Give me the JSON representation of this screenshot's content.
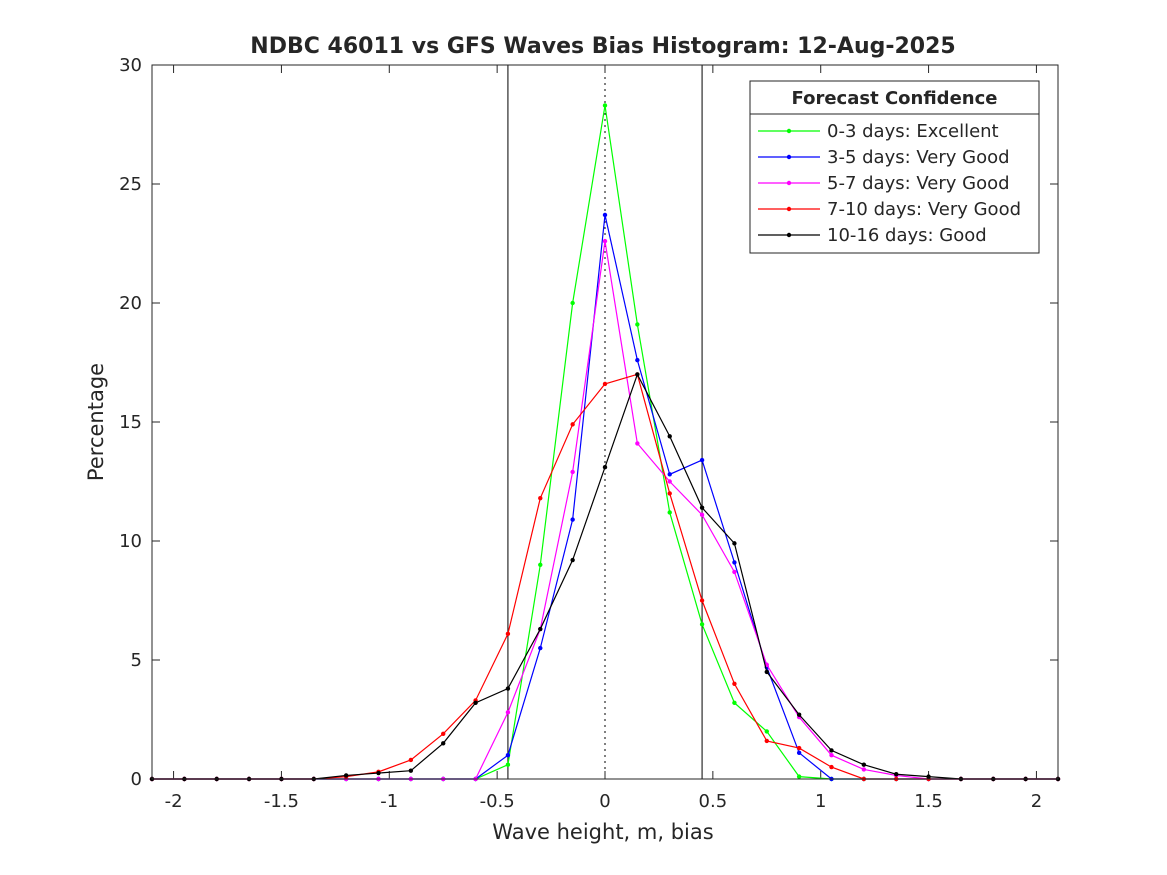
{
  "chart_data": {
    "type": "line",
    "title": "NDBC 46011 vs GFS Waves Bias Histogram: 12-Aug-2025",
    "xlabel": "Wave height, m, bias",
    "ylabel": "Percentage",
    "xlim": [
      -2.1,
      2.1
    ],
    "ylim": [
      0,
      30
    ],
    "xticks": [
      -2,
      -1.5,
      -1,
      -0.5,
      0,
      0.5,
      1,
      1.5,
      2
    ],
    "xtick_labels": [
      "-2",
      "-1.5",
      "-1",
      "-0.5",
      "0",
      "0.5",
      "1",
      "1.5",
      "2"
    ],
    "yticks": [
      0,
      5,
      10,
      15,
      20,
      25,
      30
    ],
    "ytick_labels": [
      "0",
      "5",
      "10",
      "15",
      "20",
      "25",
      "30"
    ],
    "grid": false,
    "reference_lines": {
      "solid": [
        -0.45,
        0.45
      ],
      "dotted": [
        0
      ]
    },
    "legend": {
      "title": "Forecast Confidence",
      "placement": "top-right"
    },
    "x": [
      -2.1,
      -1.95,
      -1.8,
      -1.65,
      -1.5,
      -1.35,
      -1.2,
      -1.05,
      -0.9,
      -0.75,
      -0.6,
      -0.45,
      -0.3,
      -0.15,
      0,
      0.15,
      0.3,
      0.45,
      0.6,
      0.75,
      0.9,
      1.05,
      1.2,
      1.35,
      1.5,
      1.65,
      1.8,
      1.95,
      2.1
    ],
    "series": [
      {
        "name": "0-3 days: Excellent",
        "color": "#00ff00",
        "values": [
          0,
          0,
          0,
          0,
          0,
          0,
          0,
          0,
          0,
          0,
          0,
          0.6,
          9.0,
          20.0,
          28.3,
          19.1,
          11.2,
          6.5,
          3.2,
          2.0,
          0.1,
          0,
          0,
          0,
          0,
          0,
          0,
          0,
          0
        ]
      },
      {
        "name": "3-5 days: Very Good",
        "color": "#0000ff",
        "values": [
          0,
          0,
          0,
          0,
          0,
          0,
          0,
          0,
          0,
          0,
          0,
          1.0,
          5.5,
          10.9,
          23.7,
          17.6,
          12.8,
          13.4,
          9.1,
          4.7,
          1.1,
          0,
          0,
          0,
          0,
          0,
          0,
          0,
          0
        ]
      },
      {
        "name": "5-7 days: Very Good",
        "color": "#ff00ff",
        "values": [
          0,
          0,
          0,
          0,
          0,
          0,
          0,
          0,
          0,
          0,
          0,
          2.8,
          6.3,
          12.9,
          22.6,
          14.1,
          12.5,
          11.1,
          8.7,
          4.8,
          2.6,
          1.0,
          0.4,
          0.15,
          0,
          0,
          0,
          0,
          0
        ]
      },
      {
        "name": "7-10 days: Very Good",
        "color": "#ff0000",
        "values": [
          0,
          0,
          0,
          0,
          0,
          0,
          0.1,
          0.3,
          0.8,
          1.9,
          3.3,
          6.1,
          11.8,
          14.9,
          16.6,
          17.0,
          12.0,
          7.5,
          4.0,
          1.6,
          1.3,
          0.5,
          0,
          0,
          0,
          0,
          0,
          0,
          0
        ]
      },
      {
        "name": "10-16 days: Good",
        "color": "#000000",
        "values": [
          0,
          0,
          0,
          0,
          0,
          0,
          0.15,
          0.25,
          0.35,
          1.5,
          3.2,
          3.8,
          6.3,
          9.2,
          13.1,
          17.0,
          14.4,
          11.4,
          9.9,
          4.5,
          2.7,
          1.2,
          0.6,
          0.2,
          0.1,
          0,
          0,
          0,
          0
        ]
      }
    ]
  }
}
